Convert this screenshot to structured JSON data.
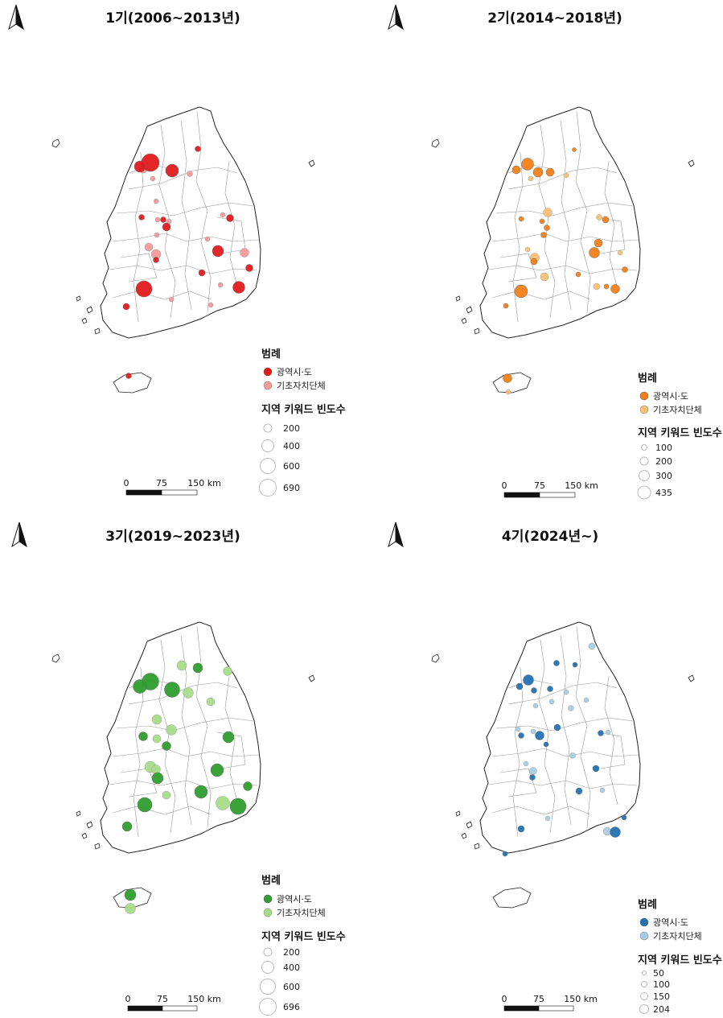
{
  "panels": [
    {
      "id": "p1",
      "title": "1기(2006~2013년)",
      "colors": {
        "metro": "#e31a1c",
        "local": "#f4989a"
      },
      "legend": {
        "title": "범례",
        "metro_label": "광역시·도",
        "local_label": "기초자치단체",
        "size_title": "지역 키워드 빈도수",
        "size_values": [
          "200",
          "400",
          "600",
          "690"
        ]
      },
      "scale": {
        "labels": [
          "0",
          "75",
          "150 km"
        ]
      }
    },
    {
      "id": "p2",
      "title": "2기(2014~2018년)",
      "colors": {
        "metro": "#f57f17",
        "local": "#fbbf72"
      },
      "legend": {
        "title": "범례",
        "metro_label": "광역시·도",
        "local_label": "기초자치단체",
        "size_title": "지역 키워드 빈도수",
        "size_values": [
          "100",
          "200",
          "300",
          "435"
        ]
      },
      "scale": {
        "labels": [
          "0",
          "75",
          "150 km"
        ]
      }
    },
    {
      "id": "p3",
      "title": "3기(2019~2023년)",
      "colors": {
        "metro": "#2e9e2e",
        "local": "#a8dc8a"
      },
      "legend": {
        "title": "범례",
        "metro_label": "광역시·도",
        "local_label": "기초자치단체",
        "size_title": "지역 키워드 빈도수",
        "size_values": [
          "200",
          "400",
          "600",
          "696"
        ]
      },
      "scale": {
        "labels": [
          "0",
          "75",
          "150 km"
        ]
      }
    },
    {
      "id": "p4",
      "title": "4기(2024년~)",
      "colors": {
        "metro": "#2171b5",
        "local": "#a6cce3"
      },
      "legend": {
        "title": "범례",
        "metro_label": "광역시·도",
        "local_label": "기초자치단체",
        "size_title": "지역 키워드 빈도수",
        "size_values": [
          "50",
          "100",
          "150",
          "204"
        ]
      },
      "scale": {
        "labels": [
          "0",
          "75",
          "150 km"
        ]
      }
    }
  ]
}
